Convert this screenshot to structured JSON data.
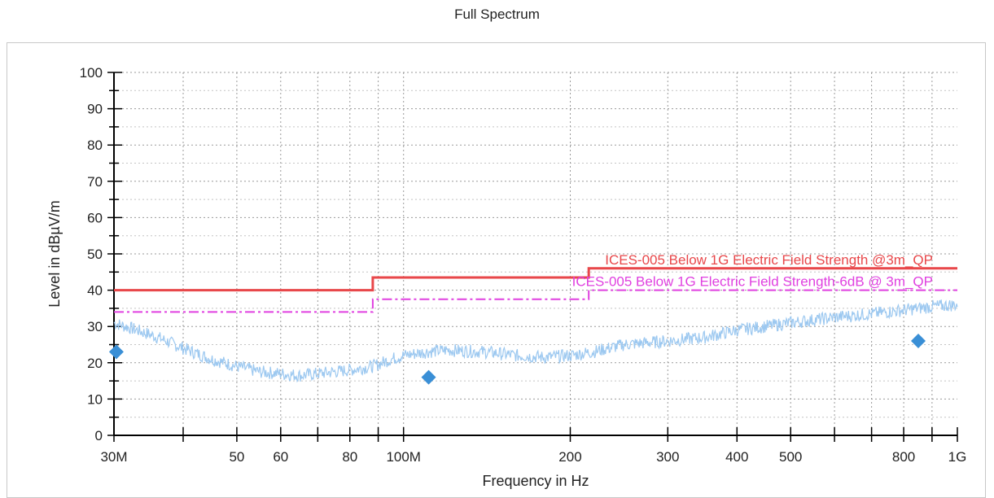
{
  "chart_data": {
    "type": "line",
    "title": "Full Spectrum",
    "xlabel": "Frequency in Hz",
    "ylabel": "Level in dBµV/m",
    "x_scale": "log",
    "xlim": [
      30000000,
      1000000000
    ],
    "ylim": [
      0,
      100
    ],
    "grid": true,
    "x_ticks": [
      {
        "value": 30000000,
        "label": "30M"
      },
      {
        "value": 40000000,
        "label": ""
      },
      {
        "value": 50000000,
        "label": "50"
      },
      {
        "value": 60000000,
        "label": "60"
      },
      {
        "value": 70000000,
        "label": ""
      },
      {
        "value": 80000000,
        "label": "80"
      },
      {
        "value": 90000000,
        "label": ""
      },
      {
        "value": 100000000,
        "label": "100M"
      },
      {
        "value": 200000000,
        "label": "200"
      },
      {
        "value": 300000000,
        "label": "300"
      },
      {
        "value": 400000000,
        "label": "400"
      },
      {
        "value": 500000000,
        "label": "500"
      },
      {
        "value": 600000000,
        "label": ""
      },
      {
        "value": 700000000,
        "label": ""
      },
      {
        "value": 800000000,
        "label": "800"
      },
      {
        "value": 900000000,
        "label": ""
      },
      {
        "value": 1000000000,
        "label": "1G"
      }
    ],
    "y_ticks": [
      0,
      10,
      20,
      30,
      40,
      50,
      60,
      70,
      80,
      90,
      100
    ],
    "series": [
      {
        "name": "ICES-005 Below 1G Electric Field Strength @3m_QP",
        "kind": "step",
        "color": "#e8474a",
        "points": [
          [
            30000000,
            40
          ],
          [
            88000000,
            40
          ],
          [
            88000000,
            43.5
          ],
          [
            216000000,
            43.5
          ],
          [
            216000000,
            46
          ],
          [
            1000000000,
            46
          ]
        ]
      },
      {
        "name": "ICES-005 Below 1G Electric Field Strength-6dB @ 3m_QP",
        "kind": "step-dashdot",
        "color": "#e040e0",
        "points": [
          [
            30000000,
            34
          ],
          [
            88000000,
            34
          ],
          [
            88000000,
            37.5
          ],
          [
            216000000,
            37.5
          ],
          [
            216000000,
            40
          ],
          [
            1000000000,
            40
          ]
        ]
      },
      {
        "kind": "noise-trace",
        "color": "#9cc8f0",
        "points": [
          [
            30000000,
            31
          ],
          [
            33000000,
            29
          ],
          [
            36000000,
            27
          ],
          [
            40000000,
            24
          ],
          [
            45000000,
            21
          ],
          [
            50000000,
            19
          ],
          [
            55000000,
            17.5
          ],
          [
            60000000,
            17
          ],
          [
            65000000,
            16.5
          ],
          [
            70000000,
            17
          ],
          [
            80000000,
            18
          ],
          [
            88000000,
            19
          ],
          [
            95000000,
            21
          ],
          [
            100000000,
            22
          ],
          [
            110000000,
            23
          ],
          [
            120000000,
            23.5
          ],
          [
            140000000,
            23
          ],
          [
            160000000,
            22
          ],
          [
            180000000,
            21.5
          ],
          [
            200000000,
            22
          ],
          [
            220000000,
            23
          ],
          [
            250000000,
            25
          ],
          [
            300000000,
            26
          ],
          [
            350000000,
            27
          ],
          [
            400000000,
            29
          ],
          [
            450000000,
            30
          ],
          [
            500000000,
            31
          ],
          [
            600000000,
            32.5
          ],
          [
            700000000,
            33.5
          ],
          [
            800000000,
            34.5
          ],
          [
            900000000,
            35.5
          ],
          [
            1000000000,
            36
          ]
        ]
      },
      {
        "kind": "markers",
        "color": "#3a8fd6",
        "points": [
          [
            30300000,
            23
          ],
          [
            111000000,
            16
          ],
          [
            850000000,
            26
          ]
        ]
      }
    ]
  }
}
